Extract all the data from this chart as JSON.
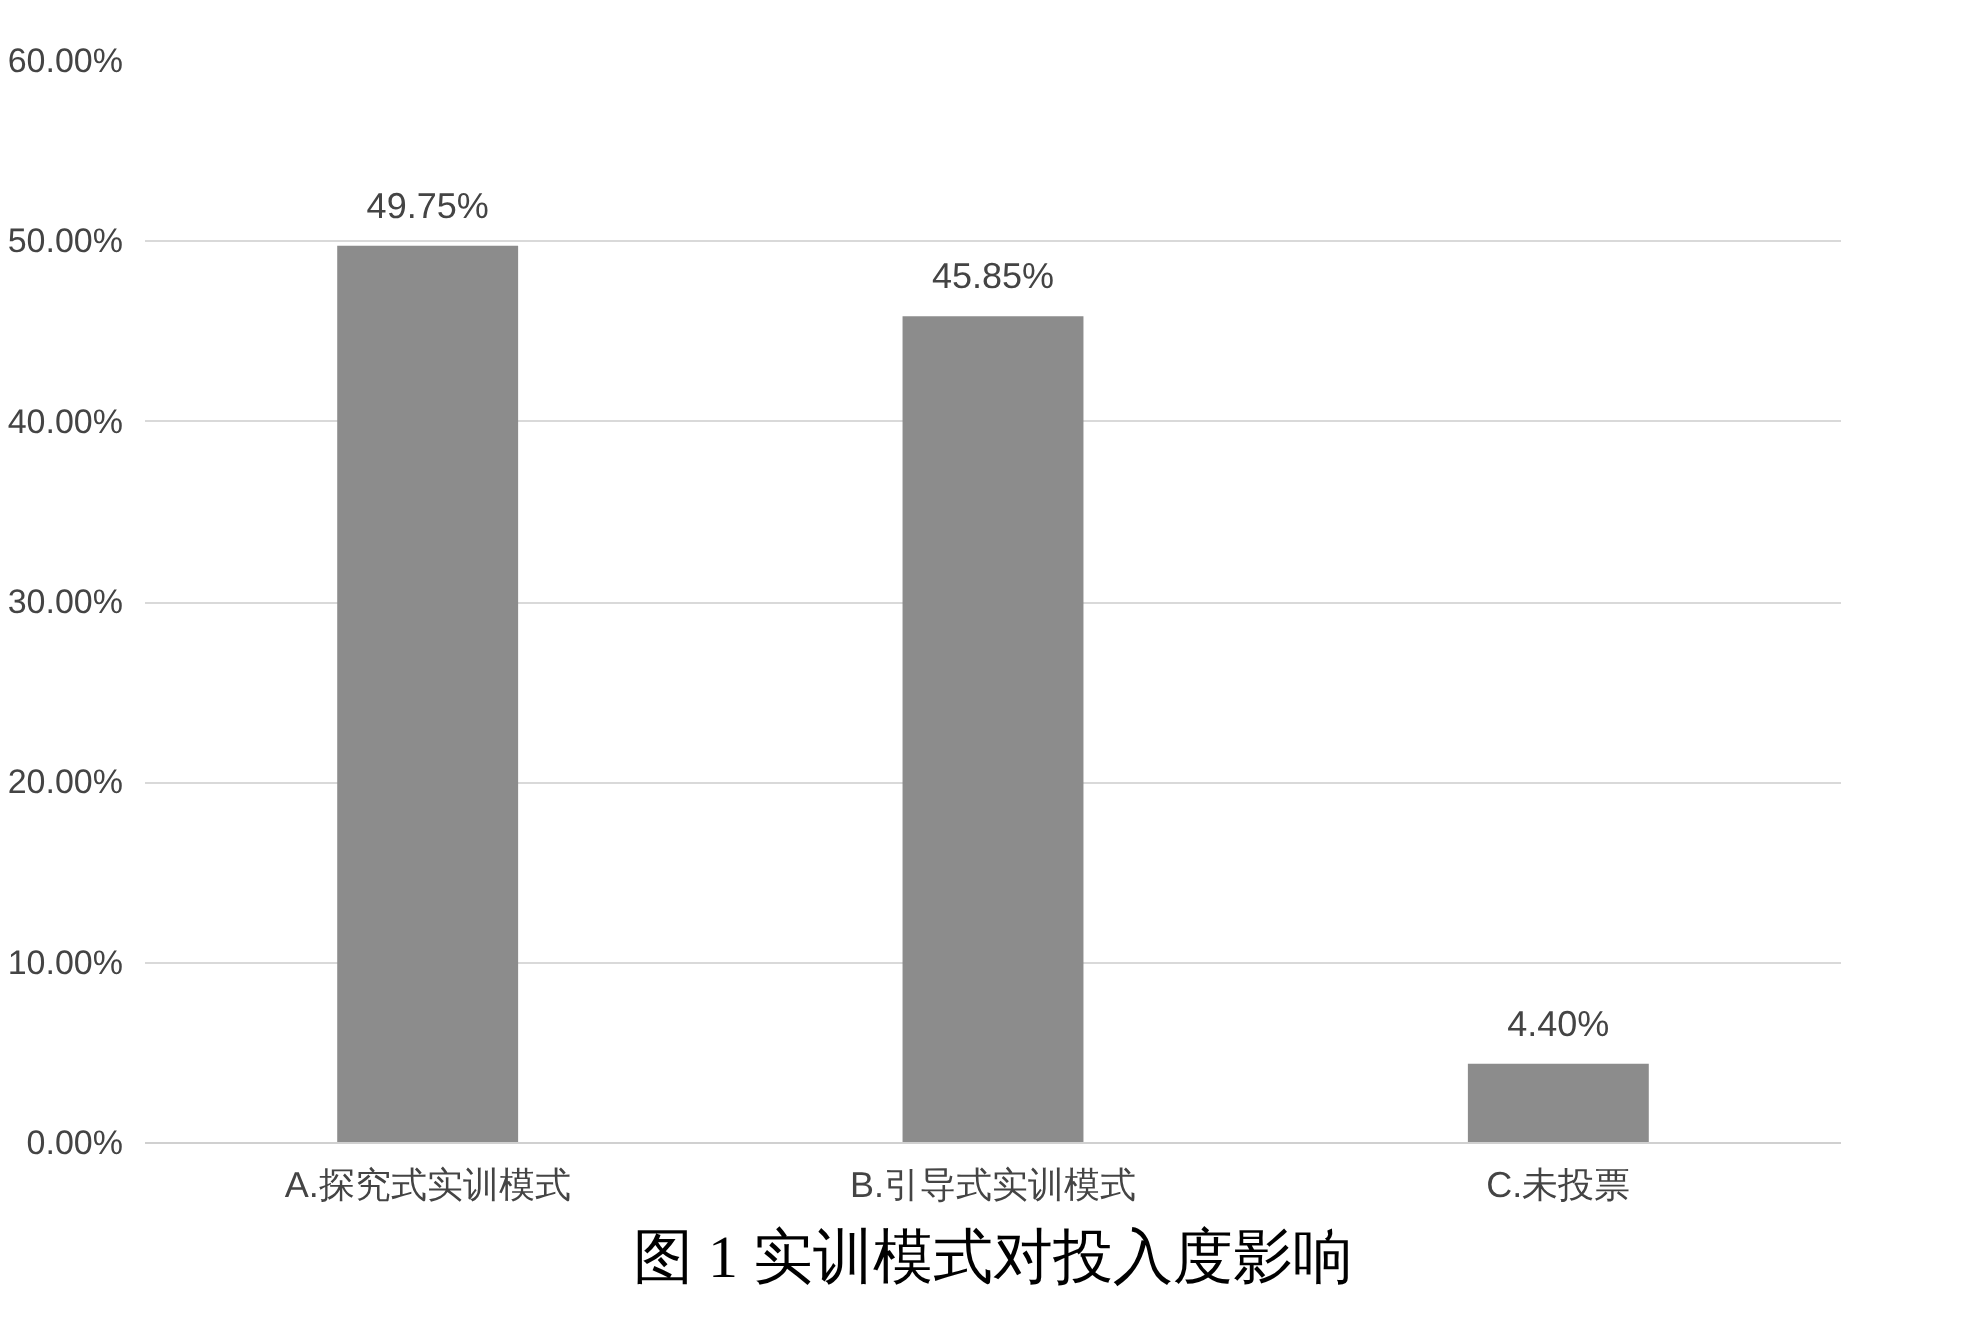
{
  "chart_data": {
    "type": "bar",
    "title": "图 1 实训模式对投入度影响",
    "categories": [
      "A.探究式实训模式",
      "B.引导式实训模式",
      "C.未投票"
    ],
    "values": [
      49.75,
      45.85,
      4.4
    ],
    "value_labels": [
      "49.75%",
      "45.85%",
      "4.40%"
    ],
    "color": "#8c8c8c",
    "ylim": [
      0,
      60
    ],
    "yticks": [
      {
        "value": 0,
        "label": "0.00%"
      },
      {
        "value": 10,
        "label": "10.00%"
      },
      {
        "value": 20,
        "label": "20.00%"
      },
      {
        "value": 30,
        "label": "30.00%"
      },
      {
        "value": 40,
        "label": "40.00%"
      },
      {
        "value": 50,
        "label": "50.00%"
      },
      {
        "value": 60,
        "label": "60.00%"
      }
    ],
    "grid": "y"
  }
}
